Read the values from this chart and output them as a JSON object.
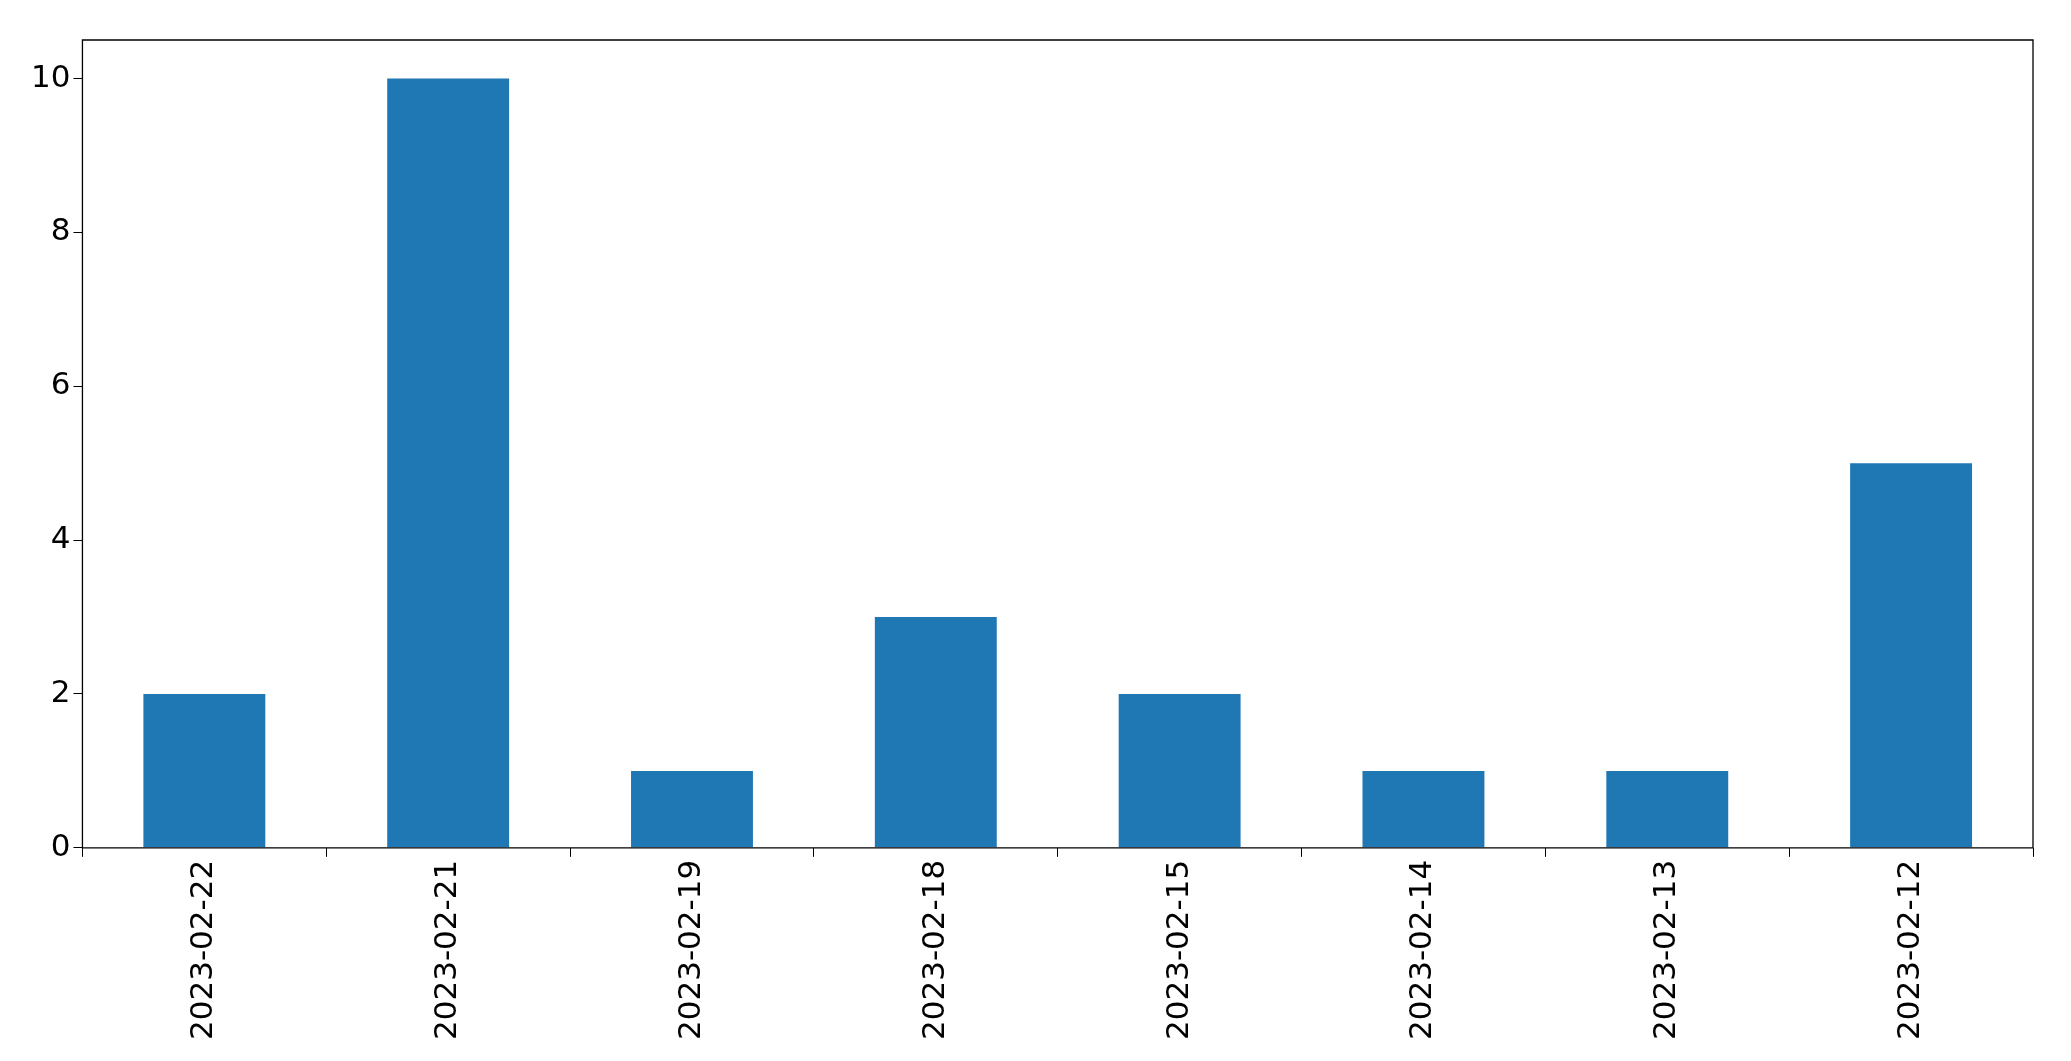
{
  "chart_data": {
    "type": "bar",
    "categories": [
      "2023-02-22",
      "2023-02-21",
      "2023-02-19",
      "2023-02-18",
      "2023-02-15",
      "2023-02-14",
      "2023-02-13",
      "2023-02-12"
    ],
    "values": [
      2,
      10,
      1,
      3,
      2,
      1,
      1,
      5
    ],
    "color": "#1f77b4",
    "ylim": [
      0,
      10.5
    ],
    "yticks": [
      0,
      2,
      4,
      6,
      8,
      10
    ],
    "legend": false
  }
}
